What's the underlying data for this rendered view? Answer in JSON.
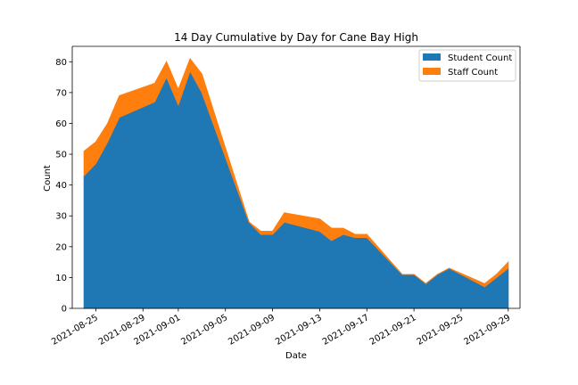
{
  "chart_data": {
    "type": "area",
    "stacked": true,
    "title": "14 Day Cumulative by Day for Cane Bay High",
    "xlabel": "Date",
    "ylabel": "Count",
    "x_ticks": [
      "2021-08-25",
      "2021-08-29",
      "2021-09-01",
      "2021-09-05",
      "2021-09-09",
      "2021-09-13",
      "2021-09-17",
      "2021-09-21",
      "2021-09-25",
      "2021-09-29"
    ],
    "y_ticks": [
      0,
      10,
      20,
      30,
      40,
      50,
      60,
      70,
      80
    ],
    "xlim": [
      "2021-08-23",
      "2021-09-30"
    ],
    "ylim": [
      0,
      85
    ],
    "grid": false,
    "legend_position": "top-right",
    "x": [
      "2021-08-24",
      "2021-08-25",
      "2021-08-26",
      "2021-08-27",
      "2021-08-30",
      "2021-08-31",
      "2021-09-01",
      "2021-09-02",
      "2021-09-03",
      "2021-09-07",
      "2021-09-08",
      "2021-09-09",
      "2021-09-10",
      "2021-09-13",
      "2021-09-14",
      "2021-09-15",
      "2021-09-16",
      "2021-09-17",
      "2021-09-20",
      "2021-09-21",
      "2021-09-22",
      "2021-09-23",
      "2021-09-24",
      "2021-09-27",
      "2021-09-28",
      "2021-09-29"
    ],
    "series": [
      {
        "name": "Student Count",
        "color": "#1f77b4",
        "values": [
          43,
          47,
          54,
          62,
          67,
          75,
          66,
          77,
          70,
          28,
          24,
          24,
          28,
          25,
          22,
          24,
          23,
          23,
          11,
          11,
          8,
          11,
          13,
          7,
          10,
          13
        ]
      },
      {
        "name": "Staff Count",
        "color": "#ff7f0e",
        "values": [
          8,
          7,
          6,
          7,
          6,
          5,
          5,
          4,
          6,
          0,
          1,
          1,
          3,
          4,
          4,
          2,
          1,
          1,
          0,
          0,
          0,
          0,
          0,
          1,
          1,
          2
        ]
      }
    ]
  }
}
